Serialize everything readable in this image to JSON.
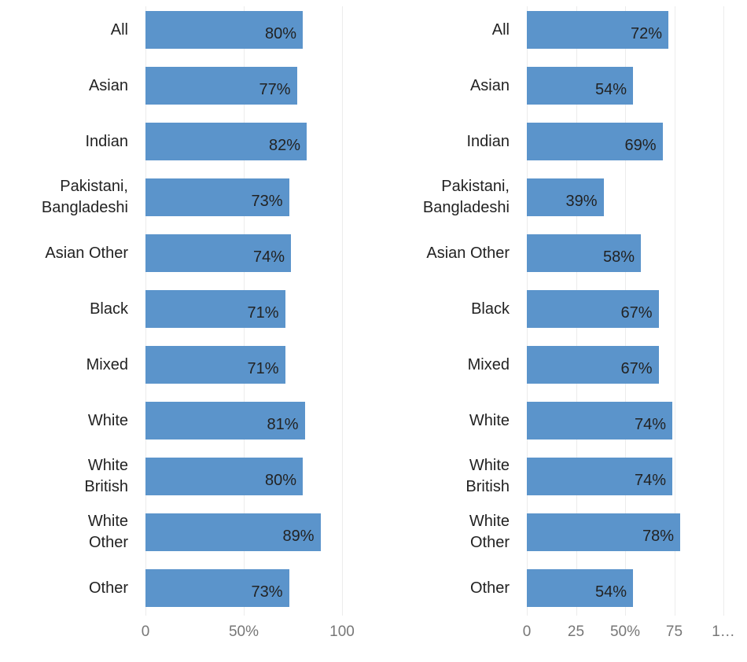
{
  "chart_data": [
    {
      "type": "bar",
      "orientation": "horizontal",
      "color": "#5b94cb",
      "grid": true,
      "categories": [
        "All",
        "Asian",
        "Indian",
        "Pakistani,\nBangladeshi",
        "Asian Other",
        "Black",
        "Mixed",
        "White",
        "White\nBritish",
        "White\nOther",
        "Other"
      ],
      "values": [
        80,
        77,
        82,
        73,
        74,
        71,
        71,
        81,
        80,
        89,
        73
      ],
      "value_labels": [
        "80%",
        "77%",
        "82%",
        "73%",
        "74%",
        "71%",
        "71%",
        "81%",
        "80%",
        "89%",
        "73%"
      ],
      "xlim": [
        0,
        100
      ],
      "xticks": [
        0,
        {
          "value": 50,
          "label": "50%"
        },
        100
      ]
    },
    {
      "type": "bar",
      "orientation": "horizontal",
      "color": "#5b94cb",
      "grid": true,
      "categories": [
        "All",
        "Asian",
        "Indian",
        "Pakistani,\nBangladeshi",
        "Asian Other",
        "Black",
        "Mixed",
        "White",
        "White\nBritish",
        "White\nOther",
        "Other"
      ],
      "values": [
        72,
        54,
        69,
        39,
        58,
        67,
        67,
        74,
        74,
        78,
        54
      ],
      "value_labels": [
        "72%",
        "54%",
        "69%",
        "39%",
        "58%",
        "67%",
        "67%",
        "74%",
        "74%",
        "78%",
        "54%"
      ],
      "xlim": [
        0,
        100
      ],
      "xticks": [
        0,
        25,
        {
          "value": 50,
          "label": "50%"
        },
        75,
        {
          "value": 100,
          "label": "1…"
        }
      ]
    }
  ]
}
